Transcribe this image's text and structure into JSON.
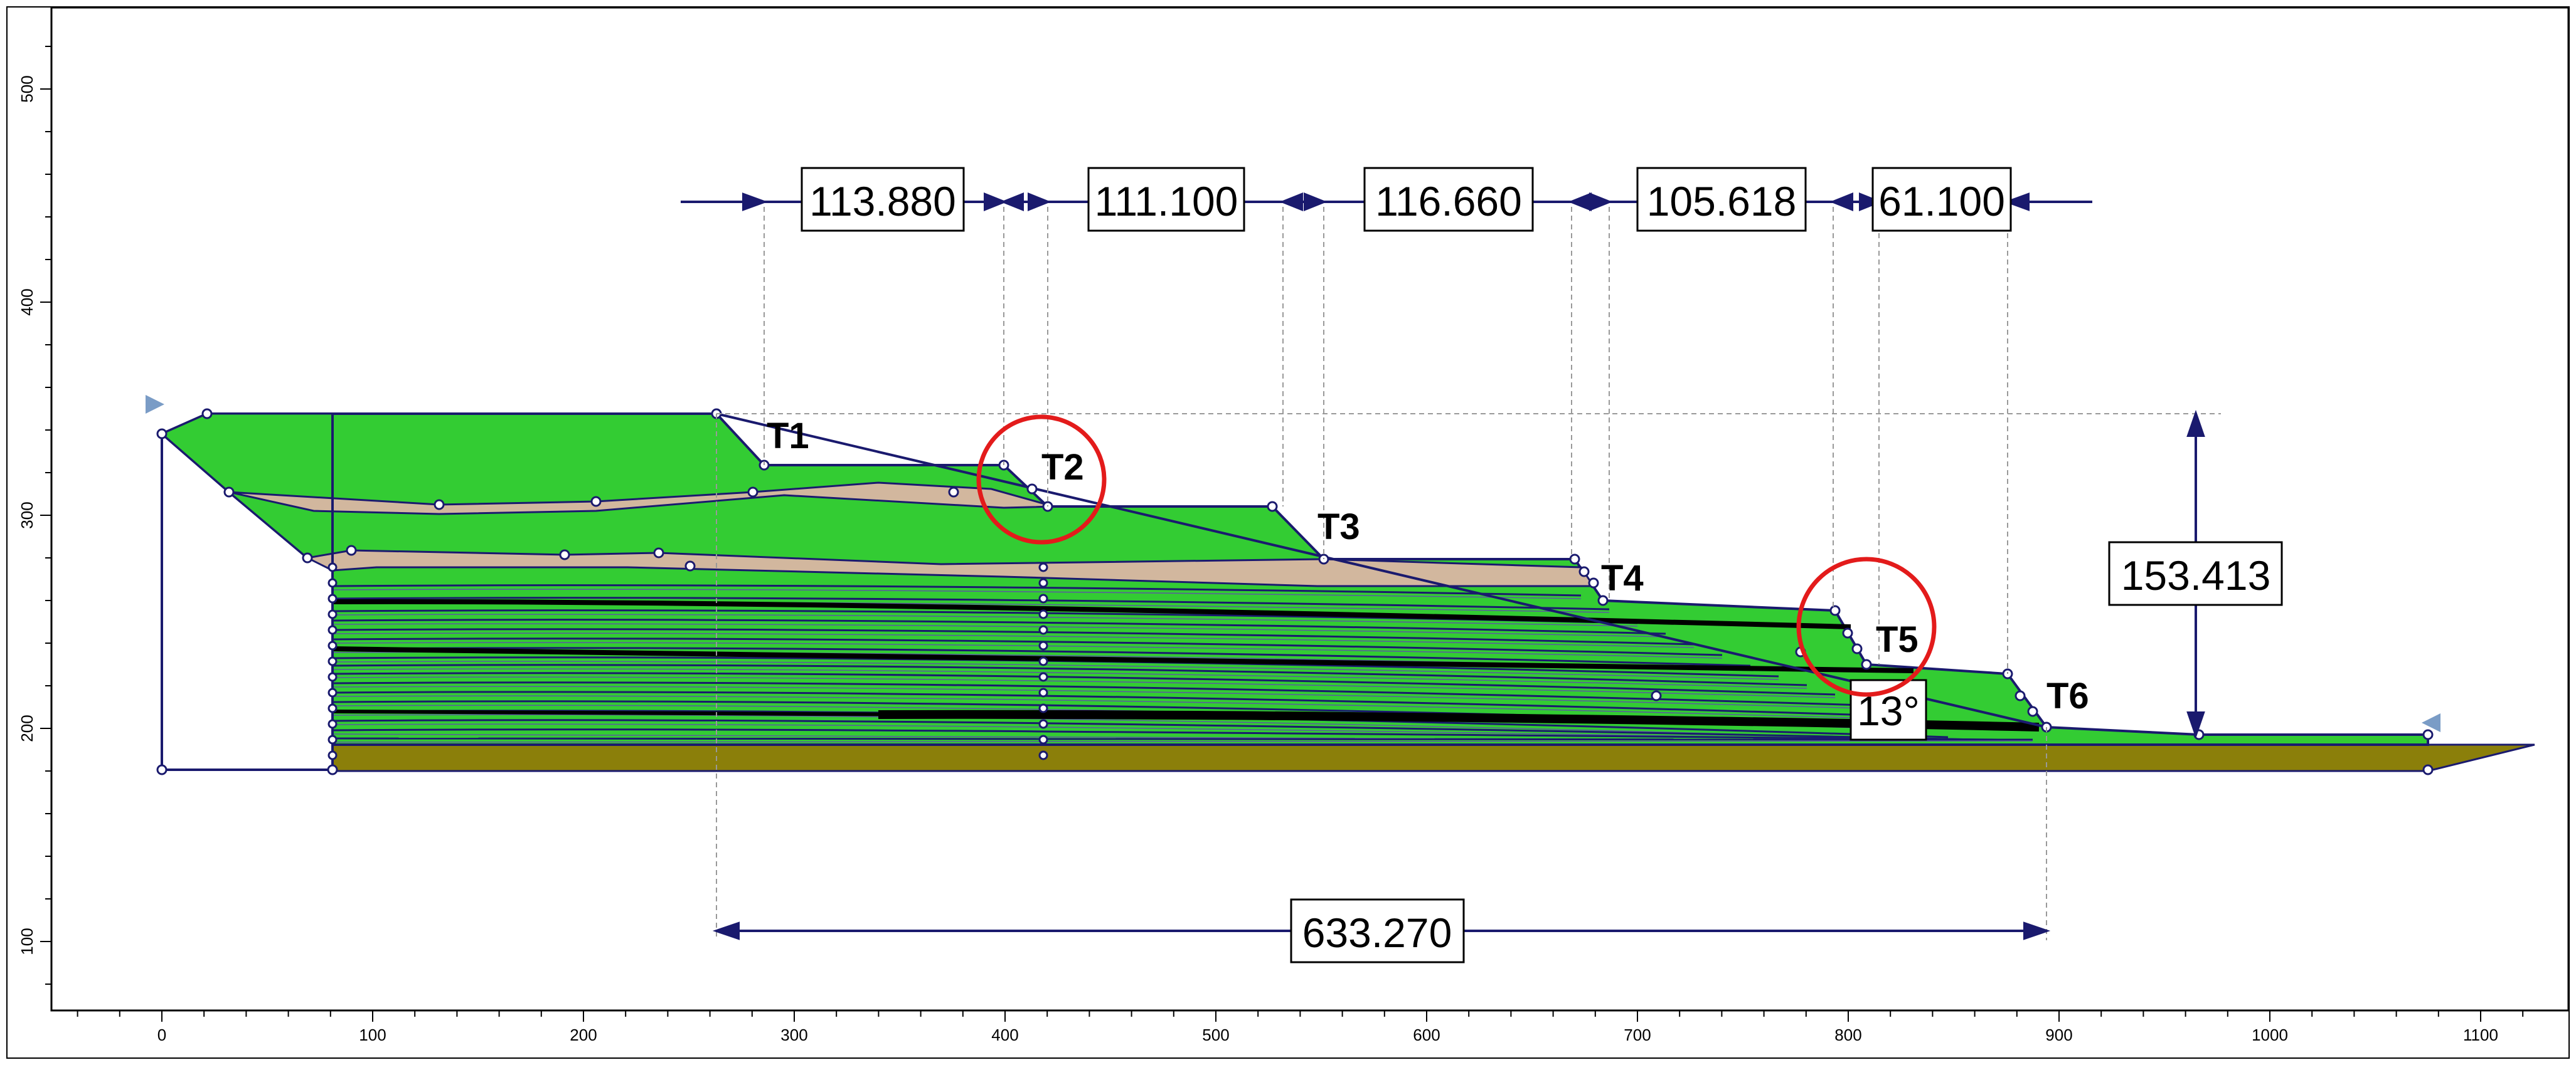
{
  "x_axis": {
    "ticks": [
      "0",
      "100",
      "200",
      "300",
      "400",
      "500",
      "600",
      "700",
      "800",
      "900",
      "1000",
      "1100"
    ]
  },
  "y_axis": {
    "ticks": [
      "100",
      "200",
      "300",
      "400",
      "500"
    ]
  },
  "bench_labels": [
    "T1",
    "T2",
    "T3",
    "T4",
    "T5",
    "T6"
  ],
  "dimensions": {
    "bench_widths": [
      "113.880",
      "111.100",
      "116.660",
      "105.618",
      "61.100"
    ],
    "total_height": "153.413",
    "total_length": "633.270",
    "angle": "13°"
  },
  "highlighted_benches": [
    "T2",
    "T5"
  ],
  "colors": {
    "material_green": "#33cc33",
    "material_tan": "#d2b79e",
    "material_bedrock": "#8b7f0a",
    "outline": "#1a1a6e",
    "highlight_circle": "#e31b1b"
  }
}
